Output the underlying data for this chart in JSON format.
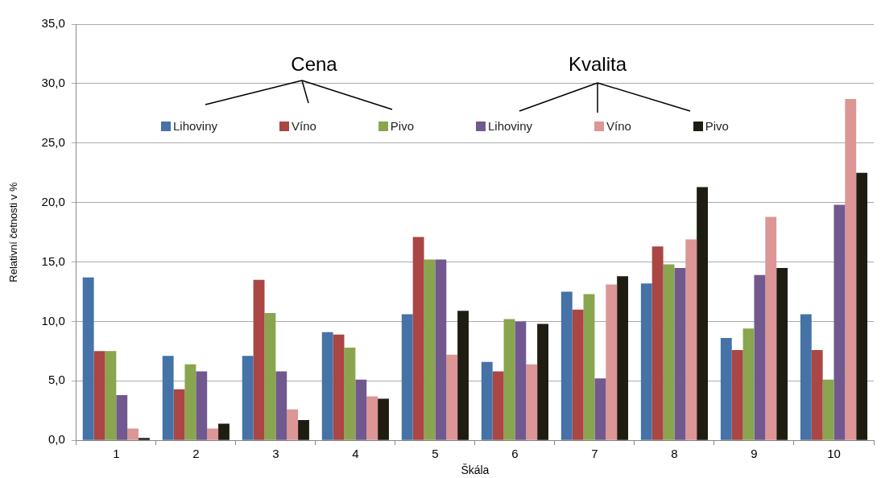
{
  "chart_data": {
    "type": "bar",
    "xlabel": "Škála",
    "ylabel": "Relativní četnosti v %",
    "categories": [
      "1",
      "2",
      "3",
      "4",
      "5",
      "6",
      "7",
      "8",
      "9",
      "10"
    ],
    "series": [
      {
        "name": "Lihoviny",
        "color": "#4572a7",
        "values": [
          13.7,
          7.1,
          7.1,
          9.1,
          10.6,
          6.6,
          12.5,
          13.2,
          8.6,
          10.6
        ]
      },
      {
        "name": "Víno",
        "color": "#aa4643",
        "values": [
          7.5,
          4.3,
          13.5,
          8.9,
          17.1,
          5.8,
          11.0,
          16.3,
          7.6,
          7.6
        ]
      },
      {
        "name": "Pivo",
        "color": "#89a54e",
        "values": [
          7.5,
          6.4,
          10.7,
          7.8,
          15.2,
          10.2,
          12.3,
          14.8,
          9.4,
          5.1
        ]
      },
      {
        "name": "Lihoviny",
        "color": "#71588f",
        "values": [
          3.8,
          5.8,
          5.8,
          5.1,
          15.2,
          10.0,
          5.2,
          14.5,
          13.9,
          19.8
        ]
      },
      {
        "name": "Víno",
        "color": "#db9695",
        "values": [
          1.0,
          1.0,
          2.6,
          3.7,
          7.2,
          6.4,
          13.1,
          16.9,
          18.8,
          28.7
        ]
      },
      {
        "name": "Pivo",
        "color": "#1f1d12",
        "values": [
          0.2,
          1.4,
          1.7,
          3.5,
          10.9,
          9.8,
          13.8,
          21.3,
          14.5,
          22.5
        ]
      }
    ],
    "annotations": [
      "Cena",
      "Kvalita"
    ],
    "ylim": [
      0,
      35
    ],
    "yticks": [
      {
        "value": 0,
        "label": "0,0"
      },
      {
        "value": 5,
        "label": "5,0"
      },
      {
        "value": 10,
        "label": "10,0"
      },
      {
        "value": 15,
        "label": "15,0"
      },
      {
        "value": 20,
        "label": "20,0"
      },
      {
        "value": 25,
        "label": "25,0"
      },
      {
        "value": 30,
        "label": "30,0"
      },
      {
        "value": 35,
        "label": "35,0"
      }
    ],
    "grid": "y",
    "legend": "top"
  }
}
